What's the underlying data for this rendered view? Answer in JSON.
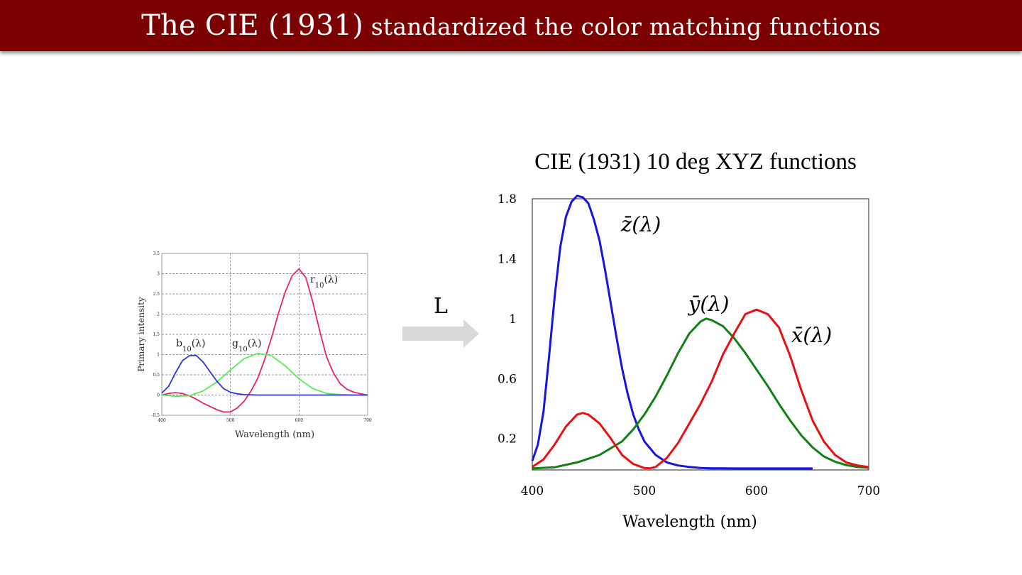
{
  "slide": {
    "title_part1": "The CIE (1931)",
    "title_part2": " standardized the color matching functions",
    "arrow_label": "L",
    "header_color": "#7b0000"
  },
  "chart_data": [
    {
      "type": "line",
      "title": "",
      "xlabel": "Wavelength (nm)",
      "ylabel": "Primary intensity",
      "xlim": [
        400,
        700
      ],
      "ylim": [
        -0.5,
        3.5
      ],
      "x_ticks": [
        "400",
        "500",
        "600",
        "700"
      ],
      "y_ticks": [
        "-0.5",
        "0",
        "0.5",
        "1",
        "1.5",
        "2",
        "2.5",
        "3",
        "3.5"
      ],
      "grid": true,
      "series": [
        {
          "name": "r10(λ)",
          "color": "#e8246e",
          "x": [
            400,
            410,
            420,
            430,
            440,
            450,
            460,
            470,
            480,
            490,
            500,
            510,
            520,
            530,
            540,
            550,
            560,
            570,
            580,
            590,
            600,
            610,
            620,
            630,
            640,
            650,
            660,
            670,
            680,
            690,
            700
          ],
          "y": [
            0,
            0.04,
            0.06,
            0.04,
            -0.02,
            -0.1,
            -0.2,
            -0.28,
            -0.36,
            -0.42,
            -0.42,
            -0.32,
            -0.15,
            0.1,
            0.42,
            0.88,
            1.42,
            2.02,
            2.55,
            2.95,
            3.12,
            2.9,
            2.3,
            1.6,
            0.95,
            0.55,
            0.28,
            0.14,
            0.07,
            0.03,
            0
          ]
        },
        {
          "name": "g10(λ)",
          "color": "#55ee55",
          "x": [
            400,
            420,
            440,
            460,
            480,
            500,
            520,
            540,
            560,
            580,
            600,
            620,
            640,
            660,
            680,
            700
          ],
          "y": [
            0,
            -0.03,
            -0.02,
            0.1,
            0.32,
            0.62,
            0.9,
            1.03,
            0.97,
            0.72,
            0.4,
            0.16,
            0.04,
            0.01,
            0,
            0
          ]
        },
        {
          "name": "b10(λ)",
          "color": "#3333dd",
          "x": [
            400,
            410,
            420,
            430,
            440,
            450,
            460,
            470,
            480,
            490,
            500,
            510,
            520,
            540,
            560,
            600,
            650,
            700
          ],
          "y": [
            0.05,
            0.22,
            0.55,
            0.85,
            0.97,
            0.98,
            0.82,
            0.58,
            0.35,
            0.16,
            0.07,
            0.03,
            0.01,
            0,
            0,
            0,
            0,
            0
          ]
        }
      ]
    },
    {
      "type": "line",
      "title": "CIE (1931) 10 deg XYZ functions",
      "xlabel": "Wavelength (nm)",
      "ylabel": "",
      "xlim": [
        400,
        700
      ],
      "ylim": [
        -0.01,
        1.8
      ],
      "x_ticks": [
        "400",
        "500",
        "600",
        "700"
      ],
      "y_ticks": [
        "0.2",
        "0.6",
        "1",
        "1.4",
        "1.8"
      ],
      "grid": false,
      "series": [
        {
          "name": "z̄(λ)",
          "color": "#1515e0",
          "x": [
            400,
            405,
            410,
            415,
            420,
            425,
            430,
            435,
            440,
            445,
            450,
            455,
            460,
            465,
            470,
            475,
            480,
            485,
            490,
            495,
            500,
            510,
            520,
            530,
            540,
            550,
            560,
            580,
            600,
            650
          ],
          "y": [
            0.05,
            0.16,
            0.38,
            0.75,
            1.15,
            1.48,
            1.68,
            1.78,
            1.82,
            1.81,
            1.77,
            1.66,
            1.52,
            1.32,
            1.1,
            0.88,
            0.67,
            0.5,
            0.36,
            0.26,
            0.18,
            0.09,
            0.04,
            0.02,
            0.01,
            0.003,
            0.001,
            0,
            0,
            0
          ]
        },
        {
          "name": "ȳ(λ)",
          "color": "#138013",
          "x": [
            400,
            420,
            440,
            460,
            480,
            490,
            500,
            510,
            520,
            530,
            540,
            550,
            555,
            560,
            570,
            580,
            590,
            600,
            610,
            620,
            630,
            640,
            650,
            660,
            670,
            680,
            690,
            700
          ],
          "y": [
            0,
            0.008,
            0.04,
            0.09,
            0.18,
            0.26,
            0.36,
            0.48,
            0.62,
            0.77,
            0.9,
            0.98,
            1,
            0.99,
            0.95,
            0.87,
            0.77,
            0.66,
            0.55,
            0.43,
            0.32,
            0.22,
            0.14,
            0.08,
            0.045,
            0.022,
            0.01,
            0.004
          ]
        },
        {
          "name": "x̄(λ)",
          "color": "#e81010",
          "x": [
            400,
            410,
            420,
            430,
            440,
            445,
            450,
            460,
            470,
            480,
            490,
            500,
            505,
            510,
            520,
            530,
            540,
            550,
            560,
            570,
            580,
            590,
            600,
            610,
            620,
            630,
            640,
            650,
            660,
            670,
            680,
            690,
            700
          ],
          "y": [
            0.01,
            0.06,
            0.16,
            0.28,
            0.36,
            0.37,
            0.36,
            0.3,
            0.2,
            0.09,
            0.03,
            0.003,
            0.001,
            0.01,
            0.07,
            0.17,
            0.3,
            0.43,
            0.58,
            0.76,
            0.9,
            1.03,
            1.06,
            1.03,
            0.94,
            0.75,
            0.52,
            0.32,
            0.18,
            0.09,
            0.04,
            0.02,
            0.01
          ]
        }
      ]
    }
  ]
}
